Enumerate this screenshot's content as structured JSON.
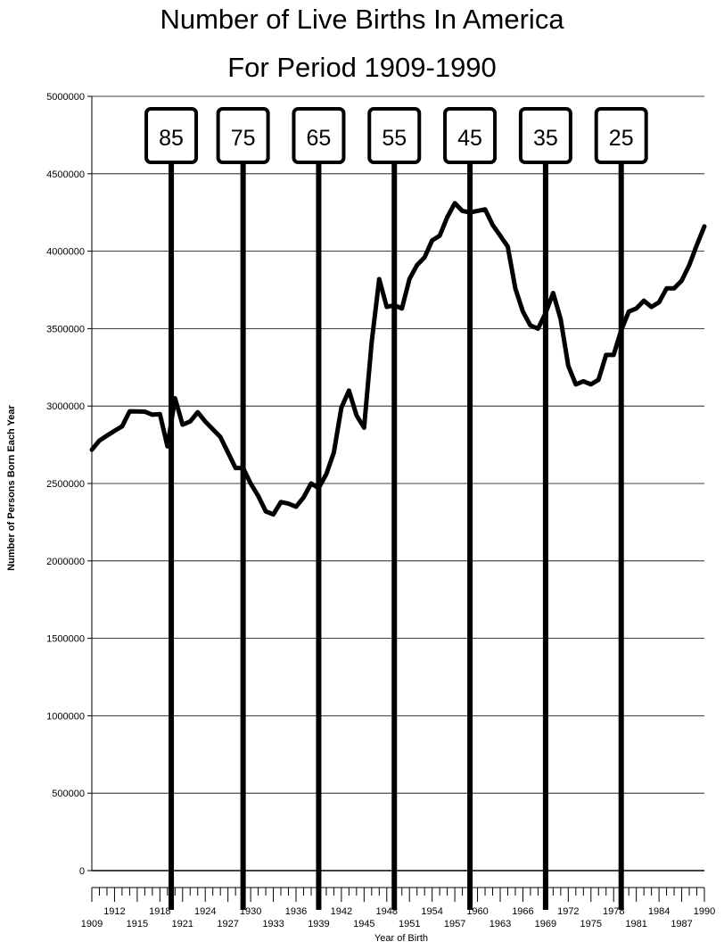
{
  "chart_data": {
    "type": "line",
    "title": "Number of Live Births In America",
    "subtitle": "For Period 1909-1990",
    "xlabel": "Year of Birth",
    "ylabel": "Number of Persons Born Each Year",
    "xlim": [
      1909,
      1990
    ],
    "ylim": [
      0,
      5000000
    ],
    "yticks": [
      0,
      500000,
      1000000,
      1500000,
      2000000,
      2500000,
      3000000,
      3500000,
      4000000,
      4500000,
      5000000
    ],
    "xtick_labels_lower": [
      1909,
      1915,
      1921,
      1927,
      1933,
      1939,
      1945,
      1951,
      1957,
      1963,
      1969,
      1975,
      1981,
      1987
    ],
    "xtick_labels_upper": [
      1912,
      1918,
      1924,
      1930,
      1936,
      1942,
      1948,
      1954,
      1960,
      1966,
      1972,
      1978,
      1984,
      1990
    ],
    "grid": "horizontal",
    "x": [
      1909,
      1910,
      1911,
      1912,
      1913,
      1914,
      1915,
      1916,
      1917,
      1918,
      1919,
      1920,
      1921,
      1922,
      1923,
      1924,
      1925,
      1926,
      1927,
      1928,
      1929,
      1930,
      1931,
      1932,
      1933,
      1934,
      1935,
      1936,
      1937,
      1938,
      1939,
      1940,
      1941,
      1942,
      1943,
      1944,
      1945,
      1946,
      1947,
      1948,
      1949,
      1950,
      1951,
      1952,
      1953,
      1954,
      1955,
      1956,
      1957,
      1958,
      1959,
      1960,
      1961,
      1962,
      1963,
      1964,
      1965,
      1966,
      1967,
      1968,
      1969,
      1970,
      1971,
      1972,
      1973,
      1974,
      1975,
      1976,
      1977,
      1978,
      1979,
      1980,
      1981,
      1982,
      1983,
      1984,
      1985,
      1986,
      1987,
      1988,
      1989,
      1990
    ],
    "values": [
      2718000,
      2777000,
      2809000,
      2840000,
      2869000,
      2966000,
      2965000,
      2964000,
      2944000,
      2948000,
      2740000,
      3050000,
      2880000,
      2900000,
      2960000,
      2900000,
      2850000,
      2800000,
      2700000,
      2600000,
      2600000,
      2500000,
      2420000,
      2320000,
      2300000,
      2380000,
      2370000,
      2350000,
      2410000,
      2500000,
      2470000,
      2560000,
      2700000,
      2990000,
      3100000,
      2940000,
      2860000,
      3410000,
      3820000,
      3640000,
      3650000,
      3630000,
      3820000,
      3910000,
      3960000,
      4070000,
      4100000,
      4220000,
      4310000,
      4260000,
      4250000,
      4260000,
      4270000,
      4170000,
      4100000,
      4030000,
      3760000,
      3610000,
      3520000,
      3500000,
      3600000,
      3730000,
      3560000,
      3260000,
      3140000,
      3160000,
      3140000,
      3170000,
      3330000,
      3330000,
      3490000,
      3610000,
      3630000,
      3680000,
      3640000,
      3670000,
      3760000,
      3760000,
      3810000,
      3910000,
      4040000,
      4160000
    ],
    "reference_lines": [
      {
        "year": 1919.5,
        "label": "85"
      },
      {
        "year": 1929,
        "label": "75"
      },
      {
        "year": 1939,
        "label": "65"
      },
      {
        "year": 1949,
        "label": "55"
      },
      {
        "year": 1959,
        "label": "45"
      },
      {
        "year": 1969,
        "label": "35"
      },
      {
        "year": 1979,
        "label": "25"
      }
    ]
  }
}
